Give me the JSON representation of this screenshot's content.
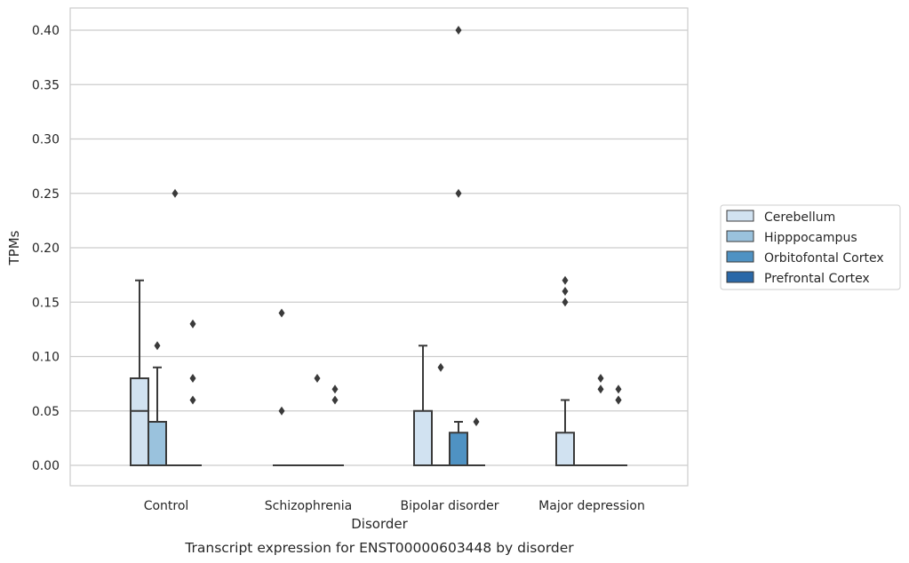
{
  "chart_data": {
    "type": "box",
    "title": "Transcript expression for ENST00000603448 by disorder",
    "xlabel": "Disorder",
    "ylabel": "TPMs",
    "ylim": [
      -0.02,
      0.42
    ],
    "yticks": [
      "0.00",
      "0.05",
      "0.10",
      "0.15",
      "0.20",
      "0.25",
      "0.30",
      "0.35",
      "0.40"
    ],
    "ytick_values": [
      0,
      0.05,
      0.1,
      0.15,
      0.2,
      0.25,
      0.3,
      0.35,
      0.4
    ],
    "categories": [
      "Control",
      "Schizophrenia",
      "Bipolar disorder",
      "Major depression"
    ],
    "grid": "horizontal",
    "legend_position": "right",
    "series": [
      {
        "name": "Cerebellum",
        "color": "#d1e2f1",
        "boxes": [
          {
            "q1": 0,
            "median": 0.05,
            "q3": 0.08,
            "whisker_low": 0,
            "whisker_high": 0.17,
            "outliers": []
          },
          {
            "q1": 0,
            "median": 0,
            "q3": 0,
            "whisker_low": 0,
            "whisker_high": 0,
            "outliers": [
              0.05,
              0.14
            ]
          },
          {
            "q1": 0,
            "median": 0,
            "q3": 0.05,
            "whisker_low": 0,
            "whisker_high": 0.11,
            "outliers": []
          },
          {
            "q1": 0,
            "median": 0,
            "q3": 0.03,
            "whisker_low": 0,
            "whisker_high": 0.06,
            "outliers": [
              0.15,
              0.16,
              0.17
            ]
          }
        ]
      },
      {
        "name": "Hipppocampus",
        "color": "#9ac2dd",
        "boxes": [
          {
            "q1": 0,
            "median": 0,
            "q3": 0.04,
            "whisker_low": 0,
            "whisker_high": 0.09,
            "outliers": [
              0.11
            ]
          },
          {
            "q1": 0,
            "median": 0,
            "q3": 0,
            "whisker_low": 0,
            "whisker_high": 0,
            "outliers": []
          },
          {
            "q1": 0,
            "median": 0,
            "q3": 0,
            "whisker_low": 0,
            "whisker_high": 0,
            "outliers": [
              0.09
            ]
          },
          {
            "q1": 0,
            "median": 0,
            "q3": 0,
            "whisker_low": 0,
            "whisker_high": 0,
            "outliers": []
          }
        ]
      },
      {
        "name": "Orbitofontal Cortex",
        "color": "#4f92c3",
        "boxes": [
          {
            "q1": 0,
            "median": 0,
            "q3": 0,
            "whisker_low": 0,
            "whisker_high": 0,
            "outliers": [
              0.25
            ]
          },
          {
            "q1": 0,
            "median": 0,
            "q3": 0,
            "whisker_low": 0,
            "whisker_high": 0,
            "outliers": [
              0.08
            ]
          },
          {
            "q1": 0,
            "median": 0,
            "q3": 0.03,
            "whisker_low": 0,
            "whisker_high": 0.04,
            "outliers": [
              0.25,
              0.4
            ]
          },
          {
            "q1": 0,
            "median": 0,
            "q3": 0,
            "whisker_low": 0,
            "whisker_high": 0,
            "outliers": [
              0.07,
              0.08
            ]
          }
        ]
      },
      {
        "name": "Prefrontal Cortex",
        "color": "#2a68a8",
        "boxes": [
          {
            "q1": 0,
            "median": 0,
            "q3": 0,
            "whisker_low": 0,
            "whisker_high": 0,
            "outliers": [
              0.06,
              0.08,
              0.13
            ]
          },
          {
            "q1": 0,
            "median": 0,
            "q3": 0,
            "whisker_low": 0,
            "whisker_high": 0,
            "outliers": [
              0.06,
              0.07
            ]
          },
          {
            "q1": 0,
            "median": 0,
            "q3": 0,
            "whisker_low": 0,
            "whisker_high": 0,
            "outliers": [
              0.04
            ]
          },
          {
            "q1": 0,
            "median": 0,
            "q3": 0,
            "whisker_low": 0,
            "whisker_high": 0,
            "outliers": [
              0.06,
              0.06,
              0.07
            ]
          }
        ]
      }
    ],
    "colors": {
      "grid": "#cccccc",
      "frame": "#cccccc",
      "line": "#3a3a3a"
    }
  }
}
